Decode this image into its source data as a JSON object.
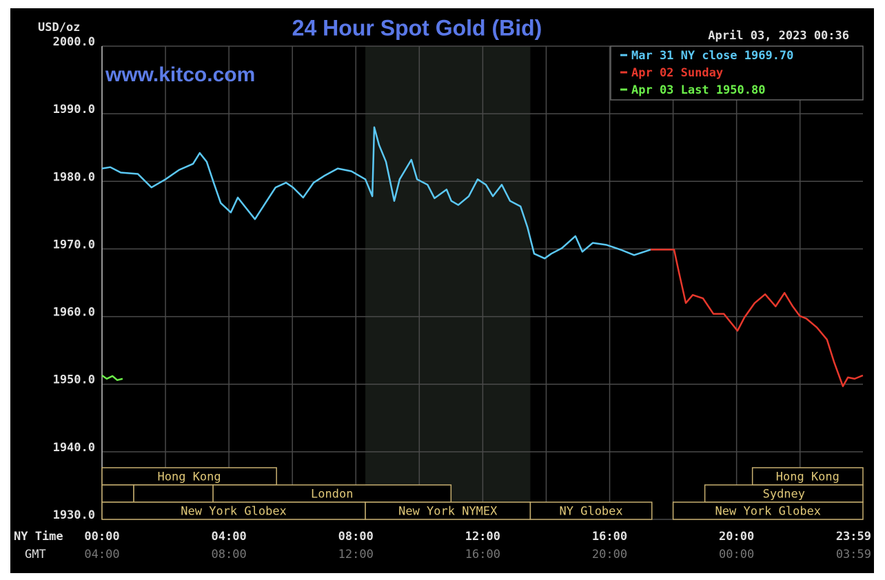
{
  "chart_data": {
    "type": "line",
    "title": "24 Hour Spot Gold (Bid)",
    "date": "April 03, 2023 00:36",
    "watermark": "www.kitco.com",
    "ylabel": "USD/oz",
    "x_row_labels": [
      "NY Time",
      "GMT"
    ],
    "ylim": [
      1930,
      2000
    ],
    "yticks": [
      {
        "value": 1930,
        "label": "1930.0"
      },
      {
        "value": 1940,
        "label": "1940.0"
      },
      {
        "value": 1950,
        "label": "1950.0"
      },
      {
        "value": 1960,
        "label": "1960.0"
      },
      {
        "value": 1970,
        "label": "1970.0"
      },
      {
        "value": 1980,
        "label": "1980.0"
      },
      {
        "value": 1990,
        "label": "1990.0"
      },
      {
        "value": 2000,
        "label": "2000.0"
      }
    ],
    "xlim": [
      0,
      23.983
    ],
    "xticks": [
      {
        "value": 0,
        "label": "00:00"
      },
      {
        "value": 4,
        "label": "04:00"
      },
      {
        "value": 8,
        "label": "08:00"
      },
      {
        "value": 12,
        "label": "12:00"
      },
      {
        "value": 16,
        "label": "16:00"
      },
      {
        "value": 20,
        "label": "20:00"
      },
      {
        "value": 23.983,
        "label": "23:59"
      }
    ],
    "gmt_labels": [
      "04:00",
      "08:00",
      "12:00",
      "16:00",
      "20:00",
      "00:00",
      "03:59"
    ],
    "xgrid": [
      0,
      2,
      4,
      6,
      8,
      10,
      12,
      14,
      16,
      18,
      20,
      22
    ],
    "grid": true,
    "highlight": [
      8.3,
      13.5
    ],
    "session_lanes": [
      [
        {
          "name": "Hong Kong",
          "start": 0,
          "end": 5.5
        },
        {
          "name": "Hong Kong",
          "start": 20.5,
          "end": 24
        }
      ],
      [
        {
          "name": null,
          "start": 0,
          "end": 1
        },
        {
          "name": null,
          "start": 1,
          "end": 3.5
        },
        {
          "name": "London",
          "start": 3.5,
          "end": 11
        },
        {
          "name": "Sydney",
          "start": 19,
          "end": 24
        }
      ],
      [
        {
          "name": "New York Globex",
          "start": 0,
          "end": 8.3
        },
        {
          "name": "New York NYMEX",
          "start": 8.3,
          "end": 13.5
        },
        {
          "name": "NY Globex",
          "start": 13.5,
          "end": 17.33
        },
        {
          "name": "New York Globex",
          "start": 18,
          "end": 24
        }
      ]
    ],
    "series": [
      {
        "name": "Mar 31 NY close 1969.70",
        "color": "#5bc8f5",
        "x": [
          0,
          0.26,
          0.59,
          1.13,
          1.56,
          2.0,
          2.43,
          2.87,
          3.08,
          3.3,
          3.52,
          3.74,
          4.06,
          4.28,
          4.5,
          4.82,
          5.15,
          5.47,
          5.8,
          6.02,
          6.34,
          6.67,
          7.0,
          7.43,
          7.86,
          8.3,
          8.52,
          8.58,
          8.73,
          8.95,
          9.21,
          9.38,
          9.75,
          9.93,
          10.26,
          10.48,
          10.86,
          11.01,
          11.23,
          11.56,
          11.84,
          12.1,
          12.32,
          12.6,
          12.86,
          13.19,
          13.41,
          13.62,
          13.95,
          14.16,
          14.49,
          14.92,
          15.14,
          15.47,
          15.9,
          16.34,
          16.77,
          17.29
        ],
        "values": [
          1981.9,
          1982.1,
          1981.3,
          1981.1,
          1979.1,
          1980.3,
          1981.7,
          1982.6,
          1984.2,
          1982.9,
          1979.8,
          1976.8,
          1975.4,
          1977.6,
          1976.3,
          1974.4,
          1976.8,
          1979.1,
          1979.8,
          1979.1,
          1977.6,
          1979.8,
          1980.8,
          1981.9,
          1981.5,
          1980.3,
          1977.8,
          1988.0,
          1985.4,
          1982.9,
          1977.1,
          1980.3,
          1983.2,
          1980.3,
          1979.5,
          1977.5,
          1978.8,
          1977.1,
          1976.5,
          1977.8,
          1980.3,
          1979.5,
          1977.8,
          1979.5,
          1977.1,
          1976.3,
          1973.2,
          1969.3,
          1968.6,
          1969.3,
          1970.1,
          1971.9,
          1969.6,
          1970.9,
          1970.6,
          1969.9,
          1969.1,
          1969.9
        ]
      },
      {
        "name": "Apr 02 Sunday",
        "color": "#e8382c",
        "x": [
          17.29,
          18.03,
          18.18,
          18.4,
          18.62,
          18.94,
          19.27,
          19.6,
          20.03,
          20.25,
          20.57,
          20.9,
          21.23,
          21.51,
          21.77,
          21.99,
          22.2,
          22.53,
          22.85,
          23.07,
          23.35,
          23.51,
          23.72,
          23.98
        ],
        "values": [
          1969.9,
          1969.9,
          1966.6,
          1962.0,
          1963.2,
          1962.7,
          1960.4,
          1960.4,
          1957.9,
          1959.9,
          1962.0,
          1963.3,
          1961.5,
          1963.5,
          1961.5,
          1960.1,
          1959.7,
          1958.4,
          1956.6,
          1953.3,
          1949.7,
          1951.0,
          1950.8,
          1951.3
        ]
      },
      {
        "name": "Apr 03 Last 1950.80",
        "color": "#6cf04a",
        "x": [
          0,
          0.15,
          0.33,
          0.48,
          0.65
        ],
        "values": [
          1951.3,
          1950.8,
          1951.2,
          1950.6,
          1950.8
        ]
      }
    ]
  }
}
